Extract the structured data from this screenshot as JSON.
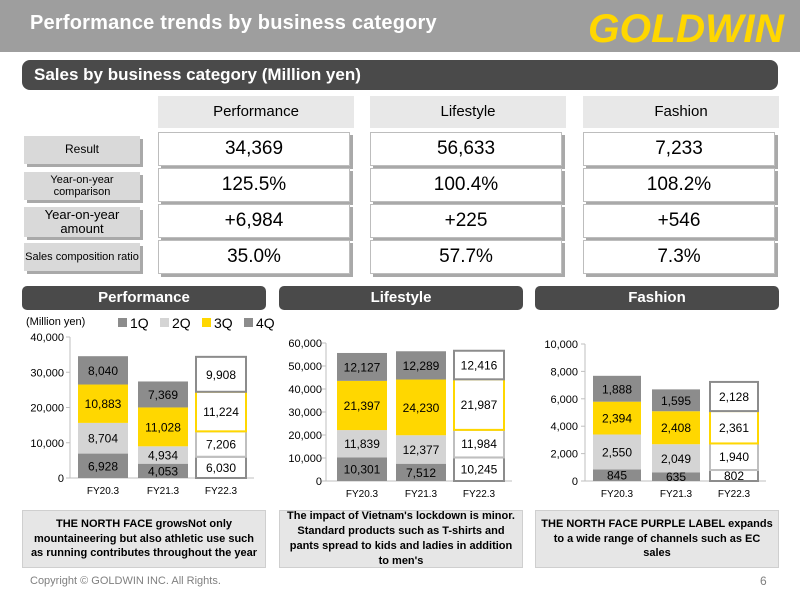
{
  "header": {
    "title": "Performance trends by business category",
    "logo_text": "GOLDWIN"
  },
  "section": {
    "title": "Sales by business category (Million yen)"
  },
  "table": {
    "columns": [
      "Performance",
      "Lifestyle",
      "Fashion"
    ],
    "rows": [
      {
        "label": "Result",
        "values": [
          "34,369",
          "56,633",
          "7,233"
        ]
      },
      {
        "label": "Year-on-year comparison",
        "values": [
          "125.5%",
          "100.4%",
          "108.2%"
        ]
      },
      {
        "label": "Year-on-year amount",
        "values": [
          "+6,984",
          "+225",
          "+546"
        ]
      },
      {
        "label": "Sales composition ratio",
        "values": [
          "35.0%",
          "57.7%",
          "7.3%"
        ]
      }
    ]
  },
  "colors": {
    "q1": "#8c8c8c",
    "q2": "#d4d4d4",
    "q3": "#ffd700",
    "q4": "#8c8c8c",
    "accent": "#ffd700",
    "dark": "#4a4a4a"
  },
  "chart_data": [
    {
      "type": "bar",
      "title": "Performance",
      "ylabel": "(Million yen)",
      "categories": [
        "FY20.3",
        "FY21.3",
        "FY22.3"
      ],
      "ylim": [
        0,
        40000
      ],
      "yticks": [
        "0",
        "10,000",
        "20,000",
        "30,000",
        "40,000"
      ],
      "legend": [
        "1Q",
        "2Q",
        "3Q",
        "4Q"
      ],
      "series": [
        {
          "name": "1Q",
          "values": [
            6928,
            4053,
            6030
          ],
          "labels": [
            "6,928",
            "4,053",
            "6,030"
          ]
        },
        {
          "name": "2Q",
          "values": [
            8704,
            4934,
            7206
          ],
          "labels": [
            "8,704",
            "4,934",
            "7,206"
          ]
        },
        {
          "name": "3Q",
          "values": [
            10883,
            11028,
            11224
          ],
          "labels": [
            "10,883",
            "11,028",
            "11,224"
          ]
        },
        {
          "name": "4Q",
          "values": [
            8040,
            7369,
            9908
          ],
          "labels": [
            "8,040",
            "7,369",
            "9,908"
          ]
        }
      ]
    },
    {
      "type": "bar",
      "title": "Lifestyle",
      "categories": [
        "FY20.3",
        "FY21.3",
        "FY22.3"
      ],
      "ylim": [
        0,
        60000
      ],
      "yticks": [
        "0",
        "10,000",
        "20,000",
        "30,000",
        "40,000",
        "50,000",
        "60,000"
      ],
      "series": [
        {
          "name": "1Q",
          "values": [
            10301,
            7512,
            10245
          ],
          "labels": [
            "10,301",
            "7,512",
            "10,245"
          ]
        },
        {
          "name": "2Q",
          "values": [
            11839,
            12377,
            11984
          ],
          "labels": [
            "11,839",
            "12,377",
            "11,984"
          ]
        },
        {
          "name": "3Q",
          "values": [
            21397,
            24230,
            21987
          ],
          "labels": [
            "21,397",
            "24,230",
            "21,987"
          ]
        },
        {
          "name": "4Q",
          "values": [
            12127,
            12289,
            12416
          ],
          "labels": [
            "12,127",
            "12,289",
            "12,416"
          ]
        }
      ]
    },
    {
      "type": "bar",
      "title": "Fashion",
      "categories": [
        "FY20.3",
        "FY21.3",
        "FY22.3"
      ],
      "ylim": [
        0,
        10000
      ],
      "yticks": [
        "0",
        "2,000",
        "4,000",
        "6,000",
        "8,000",
        "10,000"
      ],
      "series": [
        {
          "name": "1Q",
          "values": [
            845,
            635,
            802
          ],
          "labels": [
            "845",
            "635",
            "802"
          ]
        },
        {
          "name": "2Q",
          "values": [
            2550,
            2049,
            1940
          ],
          "labels": [
            "2,550",
            "2,049",
            "1,940"
          ]
        },
        {
          "name": "3Q",
          "values": [
            2394,
            2408,
            2361
          ],
          "labels": [
            "2,394",
            "2,408",
            "2,361"
          ]
        },
        {
          "name": "4Q",
          "values": [
            1888,
            1595,
            2128
          ],
          "labels": [
            "1,888",
            "1,595",
            "2,128"
          ]
        }
      ]
    }
  ],
  "notes": [
    "THE NORTH FACE growsNot only mountaineering but also athletic use such as running contributes throughout the year",
    "The impact of Vietnam's lockdown is minor. Standard products such as T-shirts and pants spread to kids and ladies in addition to men's",
    "THE NORTH FACE PURPLE LABEL expands to a wide range of channels such as EC sales"
  ],
  "footer": {
    "copyright": "Copyright © GOLDWIN INC. All Rights.",
    "page": "6"
  }
}
